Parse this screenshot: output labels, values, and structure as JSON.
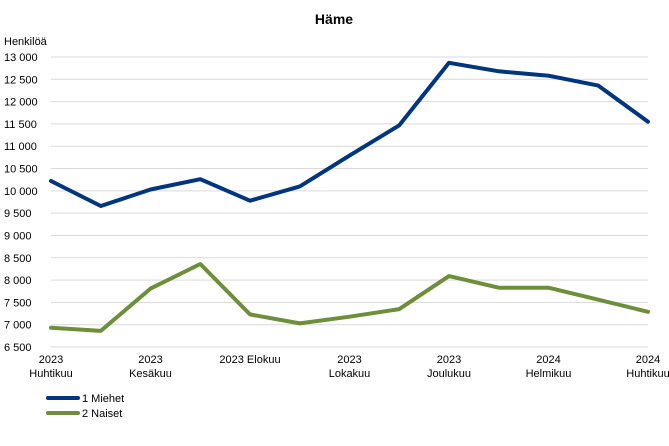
{
  "chart_data": {
    "type": "line",
    "title": "Häme",
    "ylabel": "Henkilöä",
    "xlabel": "",
    "ylim": [
      6500,
      13000
    ],
    "yticks": [
      6500,
      7000,
      7500,
      8000,
      8500,
      9000,
      9500,
      10000,
      10500,
      11000,
      11500,
      12000,
      12500,
      13000
    ],
    "ytick_labels": [
      "6 500",
      "7 000",
      "7 500",
      "8 000",
      "8 500",
      "9 000",
      "9 500",
      "10 000",
      "10 500",
      "11 000",
      "11 500",
      "12 000",
      "12 500",
      "13 000"
    ],
    "categories": [
      "2023/04",
      "2023/05",
      "2023/06",
      "2023/07",
      "2023/08",
      "2023/09",
      "2023/10",
      "2023/11",
      "2023/12",
      "2024/01",
      "2024/02",
      "2024/03",
      "2024/04"
    ],
    "xtick_labels": [
      {
        "index": 0,
        "lines": [
          "2023",
          "Huhtikuu"
        ]
      },
      {
        "index": 2,
        "lines": [
          "2023",
          "Kesäkuu"
        ]
      },
      {
        "index": 4,
        "lines": [
          "2023 Elokuu"
        ]
      },
      {
        "index": 6,
        "lines": [
          "2023",
          "Lokakuu"
        ]
      },
      {
        "index": 8,
        "lines": [
          "2023",
          "Joulukuu"
        ]
      },
      {
        "index": 10,
        "lines": [
          "2024",
          "Helmikuu"
        ]
      },
      {
        "index": 12,
        "lines": [
          "2024",
          "Huhtikuu"
        ]
      }
    ],
    "series": [
      {
        "name": "1 Miehet",
        "color": "#003580",
        "values": [
          10220,
          9660,
          10030,
          10260,
          9780,
          10100,
          10790,
          11470,
          12870,
          12680,
          12580,
          12360,
          11550
        ]
      },
      {
        "name": "2 Naiset",
        "color": "#6d8f3a",
        "values": [
          6930,
          6860,
          7810,
          8360,
          7230,
          7030,
          7180,
          7350,
          8090,
          7830,
          7830,
          7560,
          7290
        ]
      }
    ],
    "grid": true,
    "legend_position": "bottom-left"
  }
}
